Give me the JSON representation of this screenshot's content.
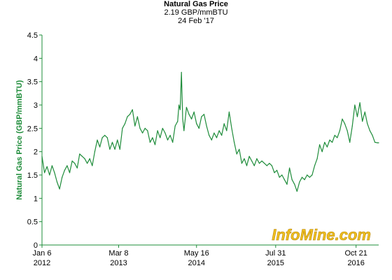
{
  "header": {
    "title": "Natural Gas Price",
    "price": "2.19 GBP/mmBTU",
    "date": "24 Feb '17"
  },
  "watermark": "InfoMine.com",
  "colors": {
    "line": "#1e8c3a",
    "axis": "#1e8c3a",
    "ylabel": "#1e8c3a",
    "watermark": "#f0c020",
    "watermark_outline": "#b8860b"
  },
  "chart_data": {
    "type": "line",
    "title": "Natural Gas Price",
    "subtitle": "2.19 GBP/mmBTU",
    "ylabel": "Natural Gas Price (GBP/mmBTU)",
    "xlabel": "",
    "ylim": [
      0,
      4.5
    ],
    "yticks": [
      "0",
      "0.5",
      "1",
      "1.5",
      "2",
      "2.5",
      "3",
      "3.5",
      "4",
      "4.5"
    ],
    "xticks": [
      {
        "date": "2012-01-06",
        "line1": "Jan 6",
        "line2": "2012"
      },
      {
        "date": "2013-03-08",
        "line1": "Mar 8",
        "line2": "2013"
      },
      {
        "date": "2014-05-16",
        "line1": "May 16",
        "line2": "2014"
      },
      {
        "date": "2015-07-31",
        "line1": "Jul 31",
        "line2": "2015"
      },
      {
        "date": "2016-10-21",
        "line1": "Oct 21",
        "line2": "2016"
      }
    ],
    "xrange": [
      "2012-01-06",
      "2017-02-24"
    ],
    "grid": false,
    "series": [
      {
        "x": [
          "2012-01-06",
          "2012-01-20",
          "2012-02-03",
          "2012-02-17",
          "2012-03-02",
          "2012-03-16",
          "2012-03-30",
          "2012-04-13",
          "2012-04-27",
          "2012-05-11",
          "2012-05-25",
          "2012-06-08",
          "2012-06-22",
          "2012-07-06",
          "2012-07-20",
          "2012-08-03",
          "2012-08-17",
          "2012-08-31",
          "2012-09-14",
          "2012-09-28",
          "2012-10-12",
          "2012-10-26",
          "2012-11-09",
          "2012-11-23",
          "2012-12-07",
          "2012-12-21",
          "2013-01-04",
          "2013-01-18",
          "2013-02-01",
          "2013-02-15",
          "2013-03-01",
          "2013-03-15",
          "2013-03-29",
          "2013-04-12",
          "2013-04-26",
          "2013-05-10",
          "2013-05-24",
          "2013-06-07",
          "2013-06-21",
          "2013-07-05",
          "2013-07-19",
          "2013-08-02",
          "2013-08-16",
          "2013-08-30",
          "2013-09-13",
          "2013-09-27",
          "2013-10-11",
          "2013-10-25",
          "2013-11-08",
          "2013-11-22",
          "2013-12-06",
          "2013-12-20",
          "2014-01-03",
          "2014-01-17",
          "2014-01-31",
          "2014-02-07",
          "2014-02-14",
          "2014-02-21",
          "2014-02-28",
          "2014-03-07",
          "2014-03-21",
          "2014-04-04",
          "2014-04-18",
          "2014-05-02",
          "2014-05-16",
          "2014-05-30",
          "2014-06-13",
          "2014-06-27",
          "2014-07-11",
          "2014-07-25",
          "2014-08-08",
          "2014-08-22",
          "2014-09-05",
          "2014-09-19",
          "2014-10-03",
          "2014-10-17",
          "2014-10-31",
          "2014-11-14",
          "2014-11-28",
          "2014-12-12",
          "2014-12-26",
          "2015-01-09",
          "2015-01-23",
          "2015-02-06",
          "2015-02-20",
          "2015-03-06",
          "2015-03-20",
          "2015-04-03",
          "2015-04-17",
          "2015-05-01",
          "2015-05-15",
          "2015-05-29",
          "2015-06-12",
          "2015-06-26",
          "2015-07-10",
          "2015-07-24",
          "2015-08-07",
          "2015-08-21",
          "2015-09-04",
          "2015-09-18",
          "2015-10-02",
          "2015-10-16",
          "2015-10-30",
          "2015-11-13",
          "2015-11-27",
          "2015-12-11",
          "2015-12-25",
          "2016-01-08",
          "2016-01-22",
          "2016-02-05",
          "2016-02-19",
          "2016-03-04",
          "2016-03-18",
          "2016-04-01",
          "2016-04-15",
          "2016-04-29",
          "2016-05-13",
          "2016-05-27",
          "2016-06-10",
          "2016-06-24",
          "2016-07-08",
          "2016-07-22",
          "2016-08-05",
          "2016-08-19",
          "2016-09-02",
          "2016-09-16",
          "2016-09-30",
          "2016-10-14",
          "2016-10-28",
          "2016-11-11",
          "2016-11-25",
          "2016-12-09",
          "2016-12-23",
          "2017-01-06",
          "2017-01-20",
          "2017-02-03",
          "2017-02-17",
          "2017-02-24"
        ],
        "values": [
          1.9,
          1.55,
          1.68,
          1.5,
          1.7,
          1.55,
          1.35,
          1.2,
          1.45,
          1.6,
          1.7,
          1.55,
          1.8,
          1.75,
          1.65,
          1.95,
          1.9,
          1.85,
          1.75,
          1.85,
          1.7,
          2.0,
          2.25,
          2.1,
          2.3,
          2.35,
          2.3,
          2.05,
          2.2,
          2.05,
          2.25,
          2.05,
          2.5,
          2.6,
          2.75,
          2.8,
          2.9,
          2.55,
          2.75,
          2.5,
          2.4,
          2.5,
          2.45,
          2.2,
          2.3,
          2.15,
          2.45,
          2.3,
          2.5,
          2.4,
          2.25,
          2.35,
          2.2,
          2.55,
          2.65,
          3.0,
          2.9,
          3.7,
          2.7,
          2.45,
          2.95,
          2.8,
          2.7,
          2.85,
          2.6,
          2.5,
          2.75,
          2.8,
          2.55,
          2.35,
          2.25,
          2.4,
          2.3,
          2.45,
          2.35,
          2.6,
          2.45,
          2.85,
          2.5,
          2.2,
          1.95,
          2.05,
          1.75,
          1.85,
          1.7,
          1.9,
          1.8,
          1.7,
          1.85,
          1.75,
          1.8,
          1.75,
          1.7,
          1.75,
          1.7,
          1.55,
          1.6,
          1.45,
          1.5,
          1.4,
          1.3,
          1.65,
          1.4,
          1.3,
          1.15,
          1.35,
          1.45,
          1.4,
          1.5,
          1.45,
          1.5,
          1.7,
          1.85,
          2.15,
          2.0,
          2.2,
          2.1,
          2.25,
          2.2,
          2.35,
          2.3,
          2.45,
          2.7,
          2.6,
          2.45,
          2.2,
          2.55,
          3.0,
          2.75,
          3.05,
          2.65,
          2.85,
          2.6,
          2.45,
          2.35,
          2.2,
          2.19,
          2.19
        ]
      }
    ]
  }
}
